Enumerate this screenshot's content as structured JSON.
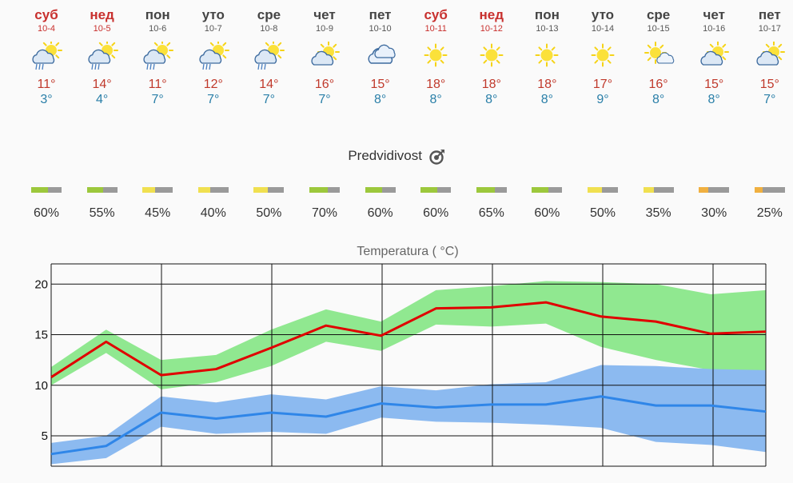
{
  "days": [
    {
      "name": "суб",
      "date": "10-4",
      "weekend": true,
      "icon": "partly-cloudy-rain-icon",
      "max": "11°",
      "min": "3°"
    },
    {
      "name": "нед",
      "date": "10-5",
      "weekend": true,
      "icon": "partly-cloudy-rain-icon",
      "max": "14°",
      "min": "4°"
    },
    {
      "name": "пон",
      "date": "10-6",
      "weekend": false,
      "icon": "partly-cloudy-rain-icon",
      "max": "11°",
      "min": "7°"
    },
    {
      "name": "уто",
      "date": "10-7",
      "weekend": false,
      "icon": "partly-cloudy-rain-icon",
      "max": "12°",
      "min": "7°"
    },
    {
      "name": "сре",
      "date": "10-8",
      "weekend": false,
      "icon": "partly-cloudy-rain-icon",
      "max": "14°",
      "min": "7°"
    },
    {
      "name": "чет",
      "date": "10-9",
      "weekend": false,
      "icon": "partly-cloudy-icon",
      "max": "16°",
      "min": "7°"
    },
    {
      "name": "пет",
      "date": "10-10",
      "weekend": false,
      "icon": "cloudy-icon",
      "max": "15°",
      "min": "8°"
    },
    {
      "name": "суб",
      "date": "10-11",
      "weekend": true,
      "icon": "sun-icon",
      "max": "18°",
      "min": "8°"
    },
    {
      "name": "нед",
      "date": "10-12",
      "weekend": true,
      "icon": "sun-icon",
      "max": "18°",
      "min": "8°"
    },
    {
      "name": "пон",
      "date": "10-13",
      "weekend": false,
      "icon": "sun-icon",
      "max": "18°",
      "min": "8°"
    },
    {
      "name": "уто",
      "date": "10-14",
      "weekend": false,
      "icon": "sun-icon",
      "max": "17°",
      "min": "9°"
    },
    {
      "name": "сре",
      "date": "10-15",
      "weekend": false,
      "icon": "sun-cloud-icon",
      "max": "16°",
      "min": "8°"
    },
    {
      "name": "чет",
      "date": "10-16",
      "weekend": false,
      "icon": "partly-cloudy-icon",
      "max": "15°",
      "min": "8°"
    },
    {
      "name": "пет",
      "date": "10-17",
      "weekend": false,
      "icon": "partly-cloudy-icon",
      "max": "15°",
      "min": "7°"
    }
  ],
  "predictability": {
    "title": "Predvidivost",
    "icon": "target-icon",
    "values": [
      "60%",
      "55%",
      "45%",
      "40%",
      "50%",
      "70%",
      "60%",
      "60%",
      "65%",
      "60%",
      "50%",
      "35%",
      "30%",
      "25%"
    ],
    "fractions": [
      0.6,
      0.55,
      0.45,
      0.4,
      0.5,
      0.7,
      0.6,
      0.6,
      0.65,
      0.6,
      0.5,
      0.35,
      0.3,
      0.25
    ]
  },
  "colors": {
    "weekend": "#c8302e",
    "max_line": "#e00000",
    "max_band": "#90e890",
    "min_line": "#2f86e8",
    "min_band": "#8cbaf0",
    "bar_green": "#9cc83c",
    "bar_yellow": "#f0e050",
    "bar_orange": "#f0b040",
    "bar_rest": "#9a9a9a"
  },
  "chart_data": {
    "type": "line",
    "title": "Temperatura ( °C)",
    "x": [
      "10-4",
      "10-5",
      "10-6",
      "10-7",
      "10-8",
      "10-9",
      "10-10",
      "10-11",
      "10-12",
      "10-13",
      "10-14",
      "10-15",
      "10-16",
      "10-17"
    ],
    "ylim": [
      2,
      22
    ],
    "yticks": [
      5,
      10,
      15,
      20
    ],
    "grid": true,
    "series": [
      {
        "values": [
          10.8,
          14.3,
          11.0,
          11.6,
          13.7,
          15.9,
          14.9,
          17.6,
          17.7,
          18.2,
          16.8,
          16.3,
          15.1,
          15.3
        ],
        "band_high": [
          11.8,
          15.5,
          12.5,
          13.0,
          15.5,
          17.5,
          16.3,
          19.4,
          19.8,
          20.3,
          20.2,
          20.0,
          19.0,
          19.4
        ],
        "band_low": [
          10.0,
          13.2,
          9.6,
          10.3,
          11.9,
          14.3,
          13.4,
          16.0,
          15.8,
          16.1,
          13.8,
          12.5,
          11.5,
          11.3
        ]
      },
      {
        "values": [
          3.2,
          4.0,
          7.3,
          6.7,
          7.3,
          6.9,
          8.2,
          7.8,
          8.1,
          8.1,
          8.9,
          8.0,
          8.0,
          7.4
        ],
        "band_high": [
          4.3,
          5.0,
          8.9,
          8.3,
          9.1,
          8.6,
          9.9,
          9.5,
          10.1,
          10.3,
          12.0,
          11.9,
          11.6,
          11.5
        ],
        "band_low": [
          2.2,
          2.8,
          5.9,
          5.2,
          5.4,
          5.2,
          6.8,
          6.4,
          6.3,
          6.1,
          5.8,
          4.4,
          4.1,
          3.4
        ]
      }
    ]
  }
}
